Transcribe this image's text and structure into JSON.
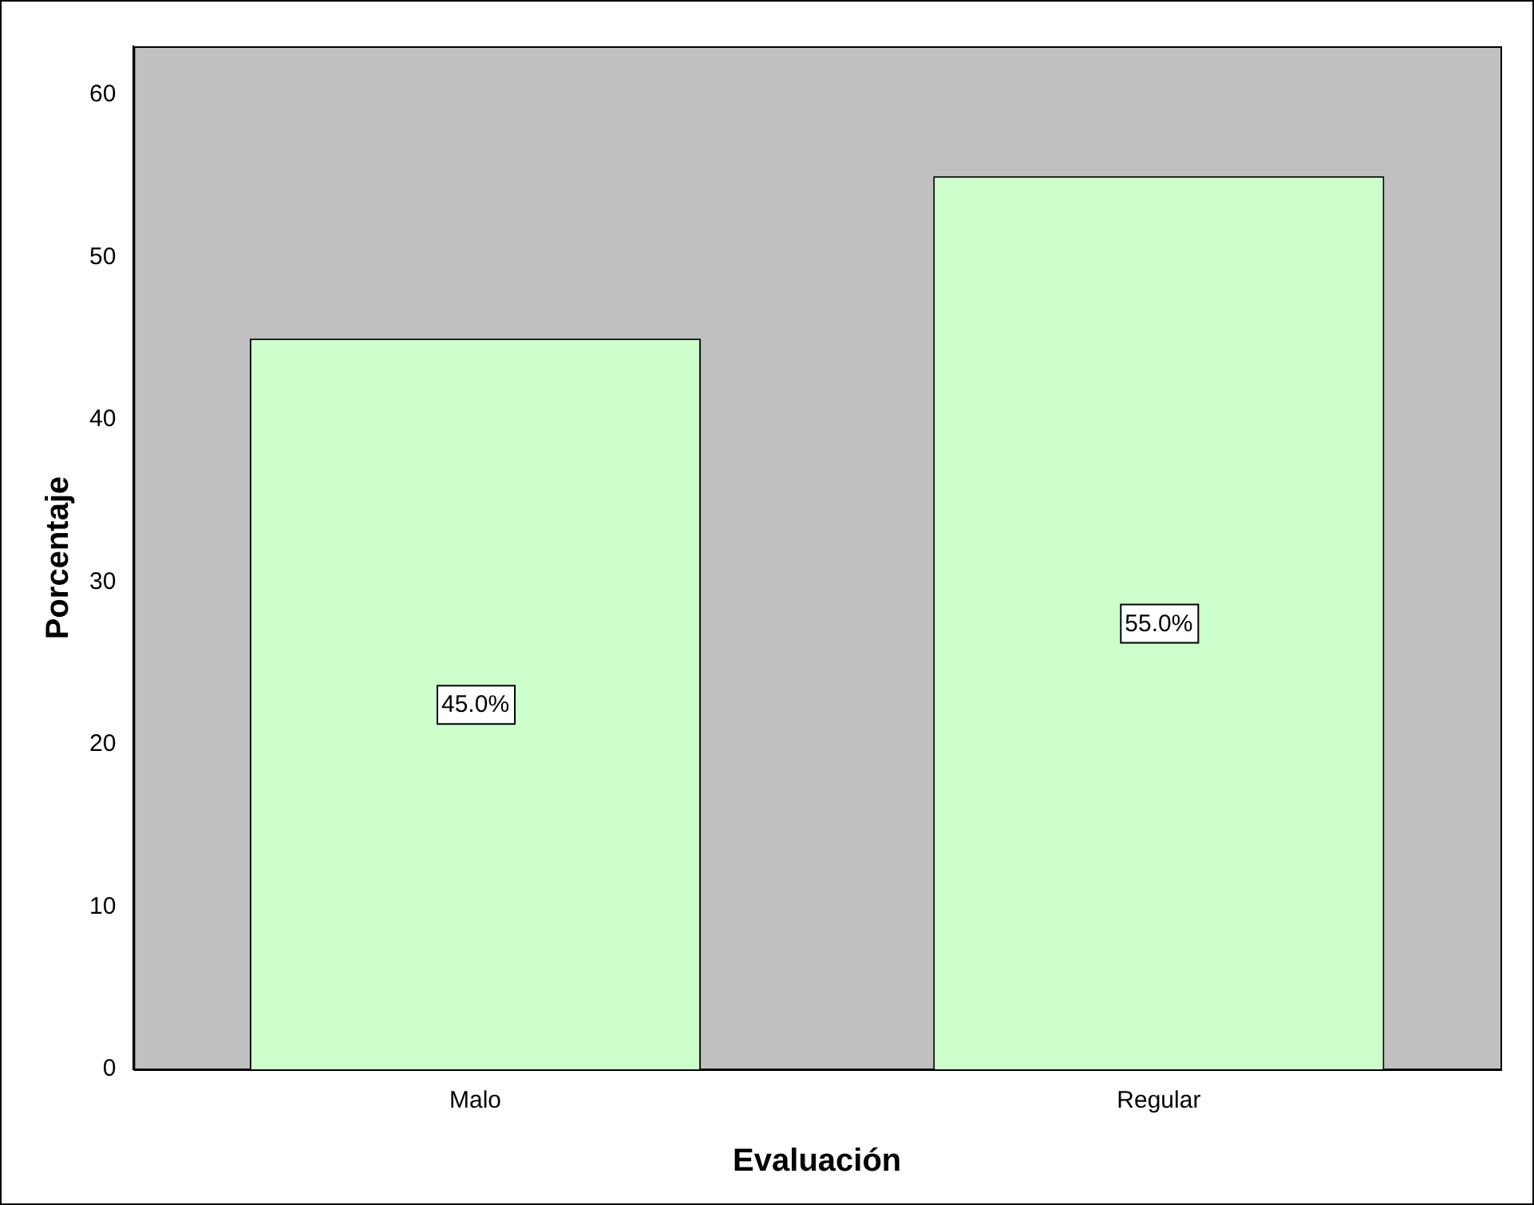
{
  "chart_data": {
    "type": "bar",
    "xlabel": "Evaluación",
    "ylabel": "Porcentaje",
    "categories": [
      "Malo",
      "Regular"
    ],
    "values": [
      45,
      55
    ],
    "color": "#ccffcc",
    "value_labels": [
      "45.0%",
      "55.0%"
    ],
    "ylim": [
      0,
      63
    ],
    "yticks": [
      0,
      10,
      20,
      30,
      40,
      50,
      60
    ],
    "grid": false,
    "legend": false
  }
}
